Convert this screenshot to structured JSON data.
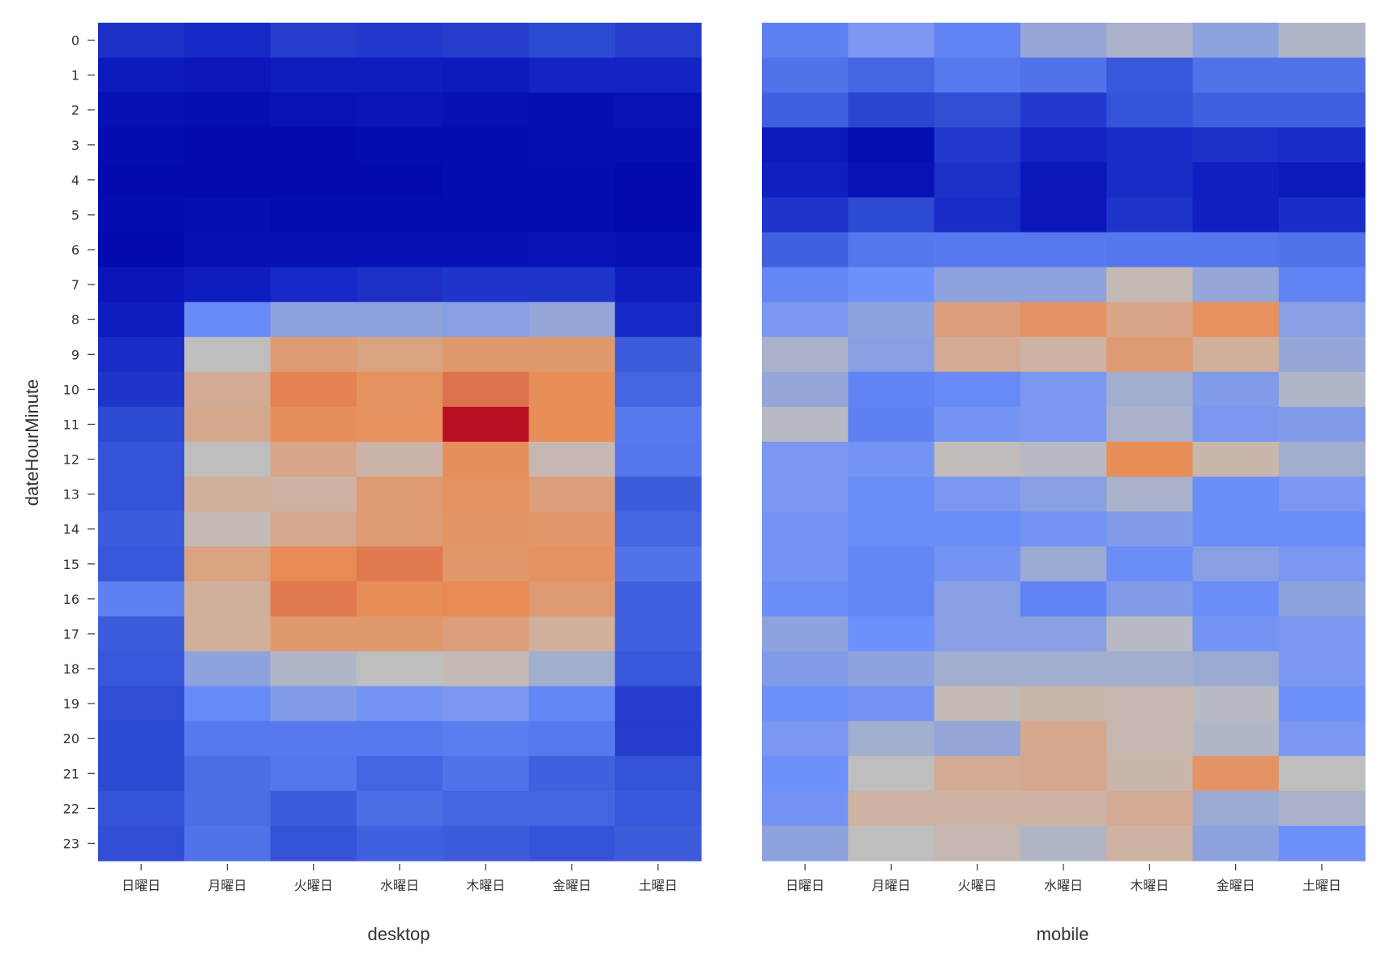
{
  "chart_data": {
    "type": "heatmap",
    "ylabel": "dateHourMinute",
    "y_categories": [
      "0",
      "1",
      "2",
      "3",
      "4",
      "5",
      "6",
      "7",
      "8",
      "9",
      "10",
      "11",
      "12",
      "13",
      "14",
      "15",
      "16",
      "17",
      "18",
      "19",
      "20",
      "21",
      "22",
      "23"
    ],
    "x_categories": [
      "日曜日",
      "月曜日",
      "火曜日",
      "水曜日",
      "木曜日",
      "金曜日",
      "土曜日"
    ],
    "colormap": "coolwarm",
    "color_range": [
      0,
      1
    ],
    "panels": [
      {
        "xlabel": "desktop",
        "values": [
          [
            0.14,
            0.12,
            0.17,
            0.16,
            0.17,
            0.2,
            0.17
          ],
          [
            0.07,
            0.06,
            0.09,
            0.09,
            0.08,
            0.11,
            0.11
          ],
          [
            0.03,
            0.02,
            0.04,
            0.05,
            0.03,
            0.02,
            0.04
          ],
          [
            0.01,
            0.0,
            0.0,
            0.01,
            0.01,
            0.02,
            0.02
          ],
          [
            0.0,
            0.0,
            0.0,
            0.0,
            0.01,
            0.01,
            0.0
          ],
          [
            0.01,
            0.02,
            0.01,
            0.01,
            0.01,
            0.01,
            0.0
          ],
          [
            0.0,
            0.03,
            0.03,
            0.03,
            0.03,
            0.04,
            0.03
          ],
          [
            0.05,
            0.09,
            0.12,
            0.14,
            0.15,
            0.15,
            0.09
          ],
          [
            0.09,
            0.36,
            0.43,
            0.43,
            0.42,
            0.44,
            0.12
          ],
          [
            0.13,
            0.5,
            0.63,
            0.61,
            0.65,
            0.65,
            0.24
          ],
          [
            0.15,
            0.58,
            0.75,
            0.69,
            0.79,
            0.72,
            0.26
          ],
          [
            0.2,
            0.59,
            0.71,
            0.7,
            0.98,
            0.72,
            0.31
          ],
          [
            0.22,
            0.5,
            0.6,
            0.55,
            0.71,
            0.53,
            0.3
          ],
          [
            0.22,
            0.57,
            0.56,
            0.63,
            0.69,
            0.62,
            0.24
          ],
          [
            0.24,
            0.52,
            0.59,
            0.63,
            0.67,
            0.66,
            0.26
          ],
          [
            0.23,
            0.61,
            0.73,
            0.77,
            0.66,
            0.69,
            0.29
          ],
          [
            0.33,
            0.57,
            0.77,
            0.72,
            0.73,
            0.63,
            0.25
          ],
          [
            0.24,
            0.57,
            0.65,
            0.65,
            0.62,
            0.57,
            0.25
          ],
          [
            0.23,
            0.43,
            0.48,
            0.5,
            0.52,
            0.46,
            0.23
          ],
          [
            0.21,
            0.36,
            0.41,
            0.39,
            0.4,
            0.35,
            0.17
          ],
          [
            0.2,
            0.31,
            0.31,
            0.31,
            0.32,
            0.31,
            0.17
          ],
          [
            0.2,
            0.28,
            0.3,
            0.26,
            0.29,
            0.25,
            0.22
          ],
          [
            0.22,
            0.28,
            0.24,
            0.28,
            0.26,
            0.26,
            0.23
          ],
          [
            0.21,
            0.29,
            0.22,
            0.25,
            0.24,
            0.22,
            0.24
          ]
        ]
      },
      {
        "xlabel": "mobile",
        "values": [
          [
            0.33,
            0.4,
            0.34,
            0.44,
            0.47,
            0.43,
            0.48
          ],
          [
            0.29,
            0.26,
            0.31,
            0.29,
            0.23,
            0.29,
            0.29
          ],
          [
            0.25,
            0.19,
            0.21,
            0.16,
            0.22,
            0.25,
            0.25
          ],
          [
            0.07,
            0.02,
            0.16,
            0.11,
            0.13,
            0.14,
            0.13
          ],
          [
            0.1,
            0.04,
            0.14,
            0.06,
            0.13,
            0.1,
            0.07
          ],
          [
            0.15,
            0.2,
            0.13,
            0.06,
            0.15,
            0.1,
            0.13
          ],
          [
            0.25,
            0.3,
            0.31,
            0.31,
            0.3,
            0.3,
            0.29
          ],
          [
            0.35,
            0.38,
            0.43,
            0.43,
            0.52,
            0.44,
            0.34
          ],
          [
            0.4,
            0.43,
            0.62,
            0.68,
            0.6,
            0.7,
            0.42
          ],
          [
            0.47,
            0.42,
            0.58,
            0.56,
            0.63,
            0.57,
            0.44
          ],
          [
            0.44,
            0.34,
            0.36,
            0.4,
            0.46,
            0.41,
            0.48
          ],
          [
            0.49,
            0.33,
            0.39,
            0.4,
            0.47,
            0.4,
            0.41
          ],
          [
            0.4,
            0.39,
            0.51,
            0.49,
            0.72,
            0.54,
            0.46
          ],
          [
            0.4,
            0.37,
            0.4,
            0.42,
            0.47,
            0.37,
            0.4
          ],
          [
            0.39,
            0.37,
            0.37,
            0.39,
            0.41,
            0.37,
            0.37
          ],
          [
            0.39,
            0.35,
            0.39,
            0.45,
            0.37,
            0.42,
            0.4
          ],
          [
            0.37,
            0.35,
            0.42,
            0.34,
            0.41,
            0.37,
            0.43
          ],
          [
            0.43,
            0.38,
            0.42,
            0.42,
            0.49,
            0.39,
            0.4
          ],
          [
            0.41,
            0.43,
            0.46,
            0.46,
            0.46,
            0.45,
            0.4
          ],
          [
            0.38,
            0.39,
            0.52,
            0.54,
            0.53,
            0.49,
            0.38
          ],
          [
            0.4,
            0.46,
            0.44,
            0.59,
            0.53,
            0.48,
            0.4
          ],
          [
            0.38,
            0.5,
            0.58,
            0.59,
            0.54,
            0.68,
            0.5
          ],
          [
            0.39,
            0.56,
            0.56,
            0.56,
            0.58,
            0.45,
            0.47
          ],
          [
            0.43,
            0.5,
            0.53,
            0.48,
            0.56,
            0.43,
            0.38
          ]
        ]
      }
    ]
  }
}
